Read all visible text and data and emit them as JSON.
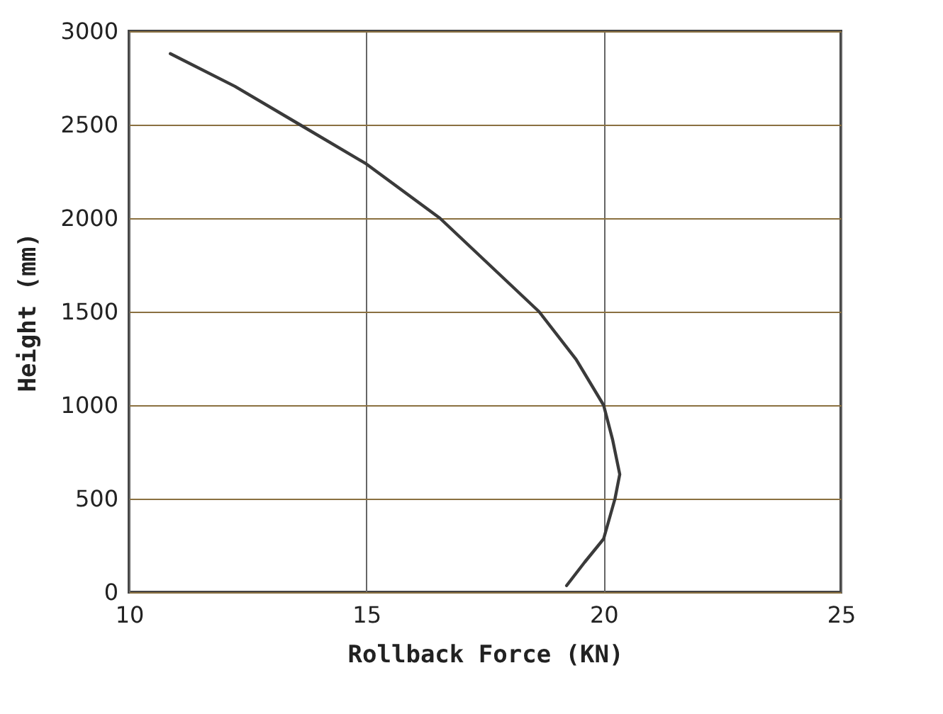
{
  "chart_data": {
    "type": "line",
    "xlabel": "Rollback Force (KN)",
    "ylabel": "Height (mm)",
    "series": [
      {
        "color": "#3a3a3a",
        "x": [
          10.87,
          12.23,
          13.6,
          15.0,
          16.55,
          18.64,
          19.42,
          20.0,
          20.19,
          20.34,
          20.24,
          20.0,
          19.6,
          19.22
        ],
        "values": [
          2880,
          2705,
          2500,
          2290,
          2000,
          1500,
          1245,
          1000,
          815,
          630,
          500,
          285,
          160,
          35
        ]
      }
    ],
    "xlim": [
      10,
      25
    ],
    "xticks": [
      10,
      15,
      20,
      25
    ],
    "ylim": [
      0,
      3000
    ],
    "yticks": [
      0,
      500,
      1000,
      1500,
      2000,
      2500,
      3000
    ],
    "grid": true,
    "line_style": "solid",
    "marker": "none"
  }
}
